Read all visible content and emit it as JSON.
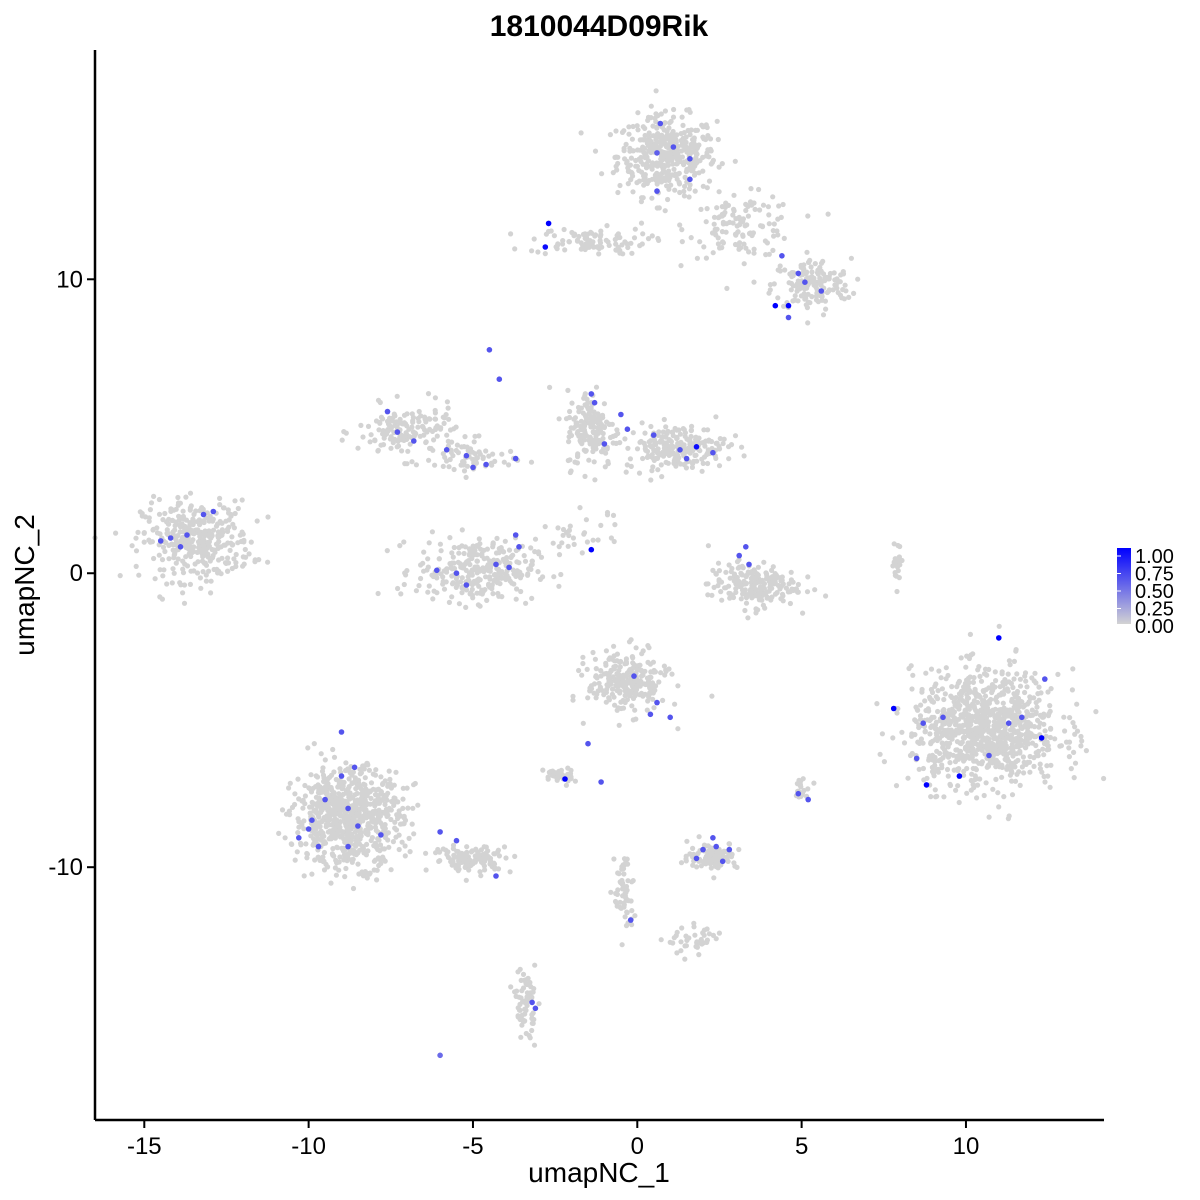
{
  "chart_data": {
    "type": "scatter",
    "title": "1810044D09Rik",
    "xlabel": "umapNC_1",
    "ylabel": "umapNC_2",
    "xlim": [
      -16.5,
      14.2
    ],
    "ylim": [
      -18.6,
      17.8
    ],
    "x_ticks": [
      -15,
      -10,
      -5,
      0,
      5,
      10
    ],
    "x_tick_labels": [
      "-15",
      "-10",
      "-5",
      "0",
      "5",
      "10"
    ],
    "y_ticks": [
      -10,
      0,
      10
    ],
    "y_tick_labels": [
      "-10",
      "0",
      "10"
    ],
    "grid": false,
    "legend": {
      "placement": "right",
      "type": "colorbar",
      "labels": [
        "1.00",
        "0.75",
        "0.50",
        "0.25",
        "0.00"
      ],
      "min": 0,
      "max": 1,
      "low_color": "#d3d3d3",
      "high_color": "#0000ff"
    },
    "clusters": [
      {
        "cx": 0.9,
        "cy": 14.2,
        "sx": 1.0,
        "sy": 0.9,
        "n": 420
      },
      {
        "cx": 3.2,
        "cy": 11.8,
        "sx": 1.1,
        "sy": 0.7,
        "n": 120
      },
      {
        "cx": 5.3,
        "cy": 9.8,
        "sx": 0.8,
        "sy": 0.6,
        "n": 160
      },
      {
        "cx": -1.5,
        "cy": 11.3,
        "sx": 1.2,
        "sy": 0.3,
        "n": 90
      },
      {
        "cx": -13.4,
        "cy": 1.1,
        "sx": 1.1,
        "sy": 0.9,
        "n": 360
      },
      {
        "cx": -7.0,
        "cy": 4.8,
        "sx": 1.0,
        "sy": 0.6,
        "n": 160
      },
      {
        "cx": -5.0,
        "cy": 3.9,
        "sx": 0.8,
        "sy": 0.4,
        "n": 60
      },
      {
        "cx": -4.9,
        "cy": 0.1,
        "sx": 1.2,
        "sy": 0.7,
        "n": 300
      },
      {
        "cx": -1.4,
        "cy": 4.9,
        "sx": 0.5,
        "sy": 0.9,
        "n": 160
      },
      {
        "cx": 1.2,
        "cy": 4.3,
        "sx": 1.0,
        "sy": 0.5,
        "n": 220
      },
      {
        "cx": 3.5,
        "cy": -0.4,
        "sx": 0.9,
        "sy": 0.5,
        "n": 200
      },
      {
        "cx": 10.6,
        "cy": -5.3,
        "sx": 1.5,
        "sy": 1.3,
        "n": 950
      },
      {
        "cx": -0.3,
        "cy": -3.7,
        "sx": 0.8,
        "sy": 0.7,
        "n": 250
      },
      {
        "cx": -2.4,
        "cy": -6.9,
        "sx": 0.3,
        "sy": 0.2,
        "n": 40
      },
      {
        "cx": -8.8,
        "cy": -8.3,
        "sx": 1.1,
        "sy": 1.1,
        "n": 760
      },
      {
        "cx": -5.0,
        "cy": -9.7,
        "sx": 0.8,
        "sy": 0.3,
        "n": 120
      },
      {
        "cx": 2.3,
        "cy": -9.6,
        "sx": 0.5,
        "sy": 0.3,
        "n": 100
      },
      {
        "cx": 5.0,
        "cy": -7.4,
        "sx": 0.2,
        "sy": 0.2,
        "n": 20
      },
      {
        "cx": -0.4,
        "cy": -10.9,
        "sx": 0.2,
        "sy": 1.0,
        "n": 60
      },
      {
        "cx": 1.8,
        "cy": -12.5,
        "sx": 0.6,
        "sy": 0.3,
        "n": 40
      },
      {
        "cx": -3.4,
        "cy": -14.6,
        "sx": 0.2,
        "sy": 0.8,
        "n": 70
      },
      {
        "cx": 7.9,
        "cy": 0.3,
        "sx": 0.1,
        "sy": 0.5,
        "n": 20
      },
      {
        "cx": -1.7,
        "cy": 1.3,
        "sx": 0.8,
        "sy": 0.5,
        "n": 30
      }
    ],
    "expressing_points": [
      {
        "x": 0.7,
        "y": 15.3,
        "v": 0.6
      },
      {
        "x": 1.1,
        "y": 14.5,
        "v": 0.6
      },
      {
        "x": 0.6,
        "y": 14.3,
        "v": 0.55
      },
      {
        "x": 1.6,
        "y": 13.4,
        "v": 0.6
      },
      {
        "x": 0.6,
        "y": 13.0,
        "v": 0.6
      },
      {
        "x": 1.6,
        "y": 14.1,
        "v": 0.6
      },
      {
        "x": -2.7,
        "y": 11.9,
        "v": 1.0
      },
      {
        "x": -2.8,
        "y": 11.1,
        "v": 0.95
      },
      {
        "x": 4.2,
        "y": 9.1,
        "v": 1.0
      },
      {
        "x": 4.6,
        "y": 9.1,
        "v": 1.0
      },
      {
        "x": 5.1,
        "y": 9.9,
        "v": 0.6
      },
      {
        "x": 5.6,
        "y": 9.6,
        "v": 0.6
      },
      {
        "x": 4.4,
        "y": 10.8,
        "v": 0.6
      },
      {
        "x": 4.9,
        "y": 10.2,
        "v": 0.6
      },
      {
        "x": 4.6,
        "y": 8.7,
        "v": 0.6
      },
      {
        "x": -4.5,
        "y": 7.6,
        "v": 0.6
      },
      {
        "x": -4.2,
        "y": 6.6,
        "v": 0.6
      },
      {
        "x": -7.6,
        "y": 5.5,
        "v": 0.6
      },
      {
        "x": -7.3,
        "y": 4.8,
        "v": 0.6
      },
      {
        "x": -6.8,
        "y": 4.5,
        "v": 0.6
      },
      {
        "x": -5.8,
        "y": 4.2,
        "v": 0.6
      },
      {
        "x": -5.2,
        "y": 4.0,
        "v": 0.6
      },
      {
        "x": -5.0,
        "y": 3.6,
        "v": 0.6
      },
      {
        "x": -4.6,
        "y": 3.7,
        "v": 0.6
      },
      {
        "x": -3.7,
        "y": 3.9,
        "v": 0.6
      },
      {
        "x": -1.4,
        "y": 6.1,
        "v": 0.6
      },
      {
        "x": -1.3,
        "y": 5.8,
        "v": 0.6
      },
      {
        "x": -0.5,
        "y": 5.4,
        "v": 0.6
      },
      {
        "x": -0.3,
        "y": 4.9,
        "v": 0.6
      },
      {
        "x": 0.5,
        "y": 4.7,
        "v": 0.6
      },
      {
        "x": -1.0,
        "y": 4.4,
        "v": 0.6
      },
      {
        "x": 1.8,
        "y": 4.3,
        "v": 0.95
      },
      {
        "x": 1.3,
        "y": 4.2,
        "v": 0.6
      },
      {
        "x": 2.3,
        "y": 4.1,
        "v": 0.6
      },
      {
        "x": 1.5,
        "y": 3.9,
        "v": 0.6
      },
      {
        "x": -13.2,
        "y": 2.0,
        "v": 0.6
      },
      {
        "x": -13.7,
        "y": 1.3,
        "v": 0.6
      },
      {
        "x": -14.5,
        "y": 1.1,
        "v": 0.6
      },
      {
        "x": -13.9,
        "y": 0.9,
        "v": 0.6
      },
      {
        "x": -14.2,
        "y": 1.2,
        "v": 0.6
      },
      {
        "x": -12.9,
        "y": 2.1,
        "v": 0.6
      },
      {
        "x": -3.7,
        "y": 1.3,
        "v": 0.6
      },
      {
        "x": -3.6,
        "y": 0.9,
        "v": 0.6
      },
      {
        "x": -4.3,
        "y": 0.3,
        "v": 0.6
      },
      {
        "x": -5.5,
        "y": 0.0,
        "v": 0.6
      },
      {
        "x": -6.1,
        "y": 0.1,
        "v": 0.6
      },
      {
        "x": -5.2,
        "y": -0.4,
        "v": 0.6
      },
      {
        "x": -3.9,
        "y": 0.2,
        "v": 0.6
      },
      {
        "x": -1.4,
        "y": 0.8,
        "v": 1.0
      },
      {
        "x": 3.1,
        "y": 0.6,
        "v": 0.6
      },
      {
        "x": 3.4,
        "y": 0.3,
        "v": 0.6
      },
      {
        "x": 3.3,
        "y": 0.9,
        "v": 0.6
      },
      {
        "x": -0.1,
        "y": -3.5,
        "v": 0.6
      },
      {
        "x": 0.6,
        "y": -4.4,
        "v": 0.6
      },
      {
        "x": 1.0,
        "y": -4.9,
        "v": 0.6
      },
      {
        "x": 0.4,
        "y": -4.8,
        "v": 0.6
      },
      {
        "x": -1.5,
        "y": -5.8,
        "v": 0.6
      },
      {
        "x": -2.2,
        "y": -7.0,
        "v": 1.0
      },
      {
        "x": -1.1,
        "y": -7.1,
        "v": 0.6
      },
      {
        "x": 11.0,
        "y": -2.2,
        "v": 1.0
      },
      {
        "x": 12.4,
        "y": -3.6,
        "v": 0.6
      },
      {
        "x": 7.8,
        "y": -4.6,
        "v": 1.0
      },
      {
        "x": 9.3,
        "y": -4.9,
        "v": 0.6
      },
      {
        "x": 8.7,
        "y": -5.1,
        "v": 0.6
      },
      {
        "x": 12.3,
        "y": -5.6,
        "v": 1.0
      },
      {
        "x": 8.8,
        "y": -7.2,
        "v": 1.0
      },
      {
        "x": 9.8,
        "y": -6.9,
        "v": 1.0
      },
      {
        "x": 10.7,
        "y": -6.2,
        "v": 0.6
      },
      {
        "x": 11.3,
        "y": -5.1,
        "v": 0.6
      },
      {
        "x": 11.7,
        "y": -4.9,
        "v": 0.6
      },
      {
        "x": 8.5,
        "y": -6.3,
        "v": 0.6
      },
      {
        "x": 4.9,
        "y": -7.5,
        "v": 0.6
      },
      {
        "x": 5.2,
        "y": -7.7,
        "v": 0.6
      },
      {
        "x": 2.0,
        "y": -9.4,
        "v": 0.6
      },
      {
        "x": 2.4,
        "y": -9.3,
        "v": 0.6
      },
      {
        "x": 2.6,
        "y": -9.8,
        "v": 0.6
      },
      {
        "x": 2.8,
        "y": -9.4,
        "v": 0.6
      },
      {
        "x": 2.3,
        "y": -9.0,
        "v": 0.6
      },
      {
        "x": 1.8,
        "y": -9.7,
        "v": 0.6
      },
      {
        "x": -9.0,
        "y": -5.4,
        "v": 0.6
      },
      {
        "x": -8.6,
        "y": -6.6,
        "v": 0.6
      },
      {
        "x": -9.0,
        "y": -6.9,
        "v": 0.6
      },
      {
        "x": -9.5,
        "y": -7.7,
        "v": 0.6
      },
      {
        "x": -9.9,
        "y": -8.4,
        "v": 0.6
      },
      {
        "x": -10.0,
        "y": -8.7,
        "v": 0.6
      },
      {
        "x": -10.3,
        "y": -9.0,
        "v": 0.6
      },
      {
        "x": -8.5,
        "y": -8.6,
        "v": 0.6
      },
      {
        "x": -8.8,
        "y": -9.3,
        "v": 0.6
      },
      {
        "x": -9.7,
        "y": -9.3,
        "v": 0.6
      },
      {
        "x": -7.8,
        "y": -8.9,
        "v": 0.6
      },
      {
        "x": -8.8,
        "y": -8.0,
        "v": 0.6
      },
      {
        "x": -6.0,
        "y": -8.8,
        "v": 0.6
      },
      {
        "x": -5.5,
        "y": -9.1,
        "v": 0.6
      },
      {
        "x": -4.3,
        "y": -10.3,
        "v": 0.6
      },
      {
        "x": -0.2,
        "y": -11.8,
        "v": 0.6
      },
      {
        "x": -3.2,
        "y": -14.6,
        "v": 0.6
      },
      {
        "x": -3.1,
        "y": -14.8,
        "v": 0.6
      },
      {
        "x": -6.0,
        "y": -16.4,
        "v": 0.5
      }
    ]
  }
}
